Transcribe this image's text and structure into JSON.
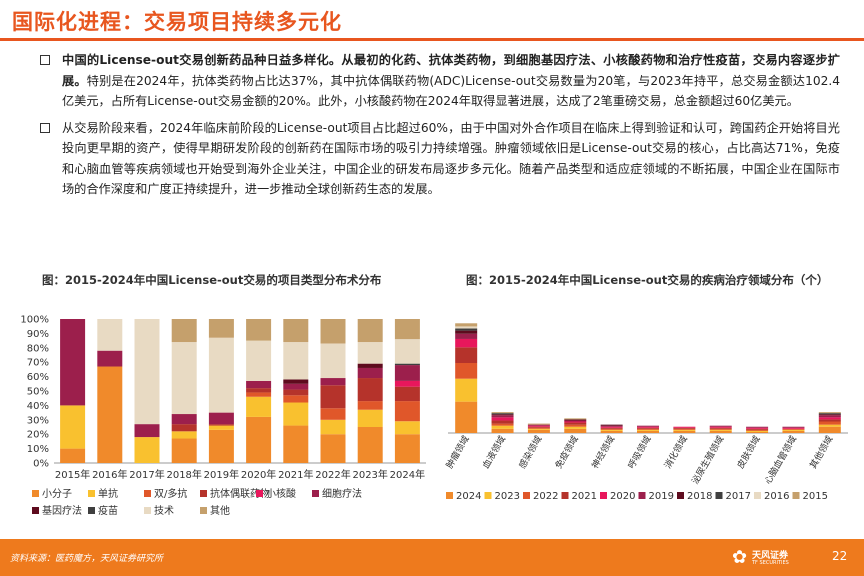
{
  "page_title": "国际化进程：交易项目持续多元化",
  "bullets": [
    {
      "strong": "中国的License-out交易创新药品种日益多样化。从最初的化药、抗体类药物，到细胞基因疗法、小核酸药物和治疗性疫苗，交易内容逐步扩展。",
      "text": "特别是在2024年，抗体类药物占比达37%，其中抗体偶联药物(ADC)License-out交易数量为20笔，与2023年持平，总交易金额达102.4亿美元，占所有License-out交易金额的20%。此外，小核酸药物在2024年取得显著进展，达成了2笔重磅交易，总金额超过60亿美元。"
    },
    {
      "strong": "",
      "text": "从交易阶段来看，2024年临床前阶段的License-out项目占比超过60%，由于中国对外合作项目在临床上得到验证和认可，跨国药企开始将目光投向更早期的资产，使得早期研发阶段的创新药在国际市场的吸引力持续增强。肿瘤领域依旧是License-out交易的核心，占比高达71%，免疫和心脑血管等疾病领域也开始受到海外企业关注，中国企业的研发布局逐步多元化。随着产品类型和适应症领域的不断拓展，中国企业在国际市场的合作深度和广度正持续提升，进一步推动全球创新药生态的发展。"
    }
  ],
  "colors": {
    "accent": "#e8561f",
    "footer": "#ee7a1d"
  },
  "chart_data": [
    {
      "type": "bar",
      "stacked": true,
      "title": "图：2015-2024年中国License-out交易的项目类型分布术分布",
      "categories": [
        "2015年",
        "2016年",
        "2017年",
        "2018年",
        "2019年",
        "2020年",
        "2021年",
        "2022年",
        "2023年",
        "2024年"
      ],
      "y_ticks": [
        "0%",
        "10%",
        "20%",
        "30%",
        "40%",
        "50%",
        "60%",
        "70%",
        "80%",
        "90%",
        "100%"
      ],
      "ylim": [
        0,
        100
      ],
      "series": [
        {
          "name": "小分子",
          "color": "#f08a2b",
          "values": [
            10,
            67,
            0,
            17,
            23,
            32,
            26,
            20,
            25,
            20
          ]
        },
        {
          "name": "单抗",
          "color": "#f9c12f",
          "values": [
            30,
            0,
            18,
            5,
            3,
            14,
            16,
            10,
            12,
            9
          ]
        },
        {
          "name": "双/多抗",
          "color": "#e0572a",
          "values": [
            0,
            0,
            0,
            0,
            0,
            3,
            5,
            8,
            6,
            14
          ]
        },
        {
          "name": "抗体偶联药物",
          "color": "#b5332b",
          "values": [
            0,
            0,
            0,
            5,
            1,
            3,
            4,
            16,
            16,
            10
          ]
        },
        {
          "name": "小核酸",
          "color": "#e8175c",
          "values": [
            0,
            0,
            0,
            0,
            0,
            0,
            0,
            0,
            0,
            4
          ]
        },
        {
          "name": "细胞疗法",
          "color": "#9c1f4c",
          "values": [
            60,
            11,
            9,
            7,
            8,
            5,
            4,
            5,
            7,
            11
          ]
        },
        {
          "name": "基因疗法",
          "color": "#5e0b1e",
          "values": [
            0,
            0,
            0,
            0,
            0,
            0,
            3,
            0,
            3,
            0
          ]
        },
        {
          "name": "疫苗",
          "color": "#3f3f3f",
          "values": [
            0,
            0,
            0,
            0,
            0,
            0,
            0,
            0,
            0,
            1
          ]
        },
        {
          "name": "技术",
          "color": "#e8dac3",
          "values": [
            0,
            22,
            73,
            50,
            52,
            28,
            26,
            24,
            15,
            17
          ]
        },
        {
          "name": "其他",
          "color": "#c5a06c",
          "values": [
            0,
            0,
            0,
            16,
            13,
            15,
            16,
            17,
            16,
            14
          ]
        }
      ]
    },
    {
      "type": "bar",
      "stacked": true,
      "title": "图：2015-2024年中国License-out交易的疾病治疗领域分布（个）",
      "categories": [
        "肿瘤领域",
        "血液领域",
        "感染领域",
        "免疫领域",
        "神经领域",
        "呼吸领域",
        "消化领域",
        "泌尿生殖领域",
        "皮肤领域",
        "心脑血管领域",
        "其他领域"
      ],
      "series": [
        {
          "name": "2024",
          "color": "#f08a2b",
          "values": [
            30,
            4,
            3,
            4,
            2,
            2,
            2,
            2,
            1,
            2,
            6
          ]
        },
        {
          "name": "2023",
          "color": "#f9c12f",
          "values": [
            22,
            3,
            1,
            2,
            1,
            1,
            1,
            1,
            1,
            1,
            2
          ]
        },
        {
          "name": "2022",
          "color": "#e0572a",
          "values": [
            15,
            2,
            1,
            2,
            1,
            1,
            1,
            1,
            1,
            1,
            3
          ]
        },
        {
          "name": "2021",
          "color": "#b5332b",
          "values": [
            15,
            3,
            1,
            2,
            1,
            1,
            1,
            1,
            1,
            0,
            2
          ]
        },
        {
          "name": "2020",
          "color": "#e8175c",
          "values": [
            8,
            3,
            1,
            1,
            1,
            1,
            1,
            1,
            1,
            1,
            2
          ]
        },
        {
          "name": "2019",
          "color": "#9c1f4c",
          "values": [
            5,
            2,
            1,
            1,
            1,
            1,
            0,
            1,
            1,
            1,
            2
          ]
        },
        {
          "name": "2018",
          "color": "#5e0b1e",
          "values": [
            3,
            1,
            0,
            1,
            1,
            0,
            0,
            0,
            0,
            0,
            1
          ]
        },
        {
          "name": "2017",
          "color": "#3f3f3f",
          "values": [
            2,
            1,
            0,
            0,
            0,
            0,
            0,
            0,
            0,
            0,
            1
          ]
        },
        {
          "name": "2016",
          "color": "#e8dac3",
          "values": [
            2,
            0,
            0,
            0,
            0,
            0,
            0,
            0,
            0,
            0,
            0
          ]
        },
        {
          "name": "2015",
          "color": "#c5a06c",
          "values": [
            3,
            1,
            1,
            1,
            0,
            0,
            0,
            0,
            0,
            0,
            1
          ]
        }
      ]
    }
  ],
  "footer": {
    "source": "资料来源：医药魔方，天风证券研究所",
    "logo_text": "天风证券",
    "logo_sub": "TF SECURITIES",
    "page_number": "22"
  }
}
